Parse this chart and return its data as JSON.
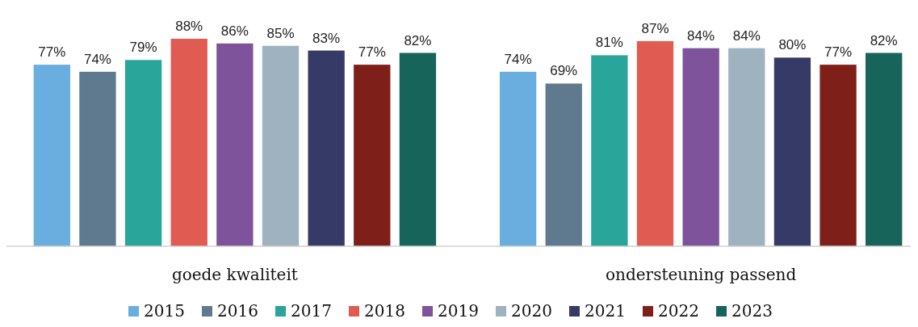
{
  "chart_data": {
    "type": "bar",
    "categories": [
      "goede kwaliteit",
      "ondersteuning passend"
    ],
    "tick_labels": "x",
    "legend": "bottom",
    "series": [
      {
        "name": "2015",
        "color": "#6aaee0",
        "values": [
          77,
          74
        ],
        "value_labels": [
          "77%",
          "74%"
        ]
      },
      {
        "name": "2016",
        "color": "#5f7a8f",
        "values": [
          74,
          69
        ],
        "value_labels": [
          "74%",
          "69%"
        ]
      },
      {
        "name": "2017",
        "color": "#2aa59a",
        "values": [
          79,
          81
        ],
        "value_labels": [
          "79%",
          "81%"
        ]
      },
      {
        "name": "2018",
        "color": "#e05c52",
        "values": [
          88,
          87
        ],
        "value_labels": [
          "88%",
          "87%"
        ]
      },
      {
        "name": "2019",
        "color": "#7f539b",
        "values": [
          86,
          84
        ],
        "value_labels": [
          "86%",
          "84%"
        ]
      },
      {
        "name": "2020",
        "color": "#9fb2bf",
        "values": [
          85,
          84
        ],
        "value_labels": [
          "85%",
          "84%"
        ]
      },
      {
        "name": "2021",
        "color": "#363a66",
        "values": [
          83,
          80
        ],
        "value_labels": [
          "83%",
          "80%"
        ]
      },
      {
        "name": "2022",
        "color": "#7f1f1a",
        "values": [
          77,
          77
        ],
        "value_labels": [
          "77%",
          "77%"
        ]
      },
      {
        "name": "2023",
        "color": "#17645a",
        "values": [
          82,
          82
        ],
        "value_labels": [
          "82%",
          "82%"
        ]
      }
    ]
  }
}
